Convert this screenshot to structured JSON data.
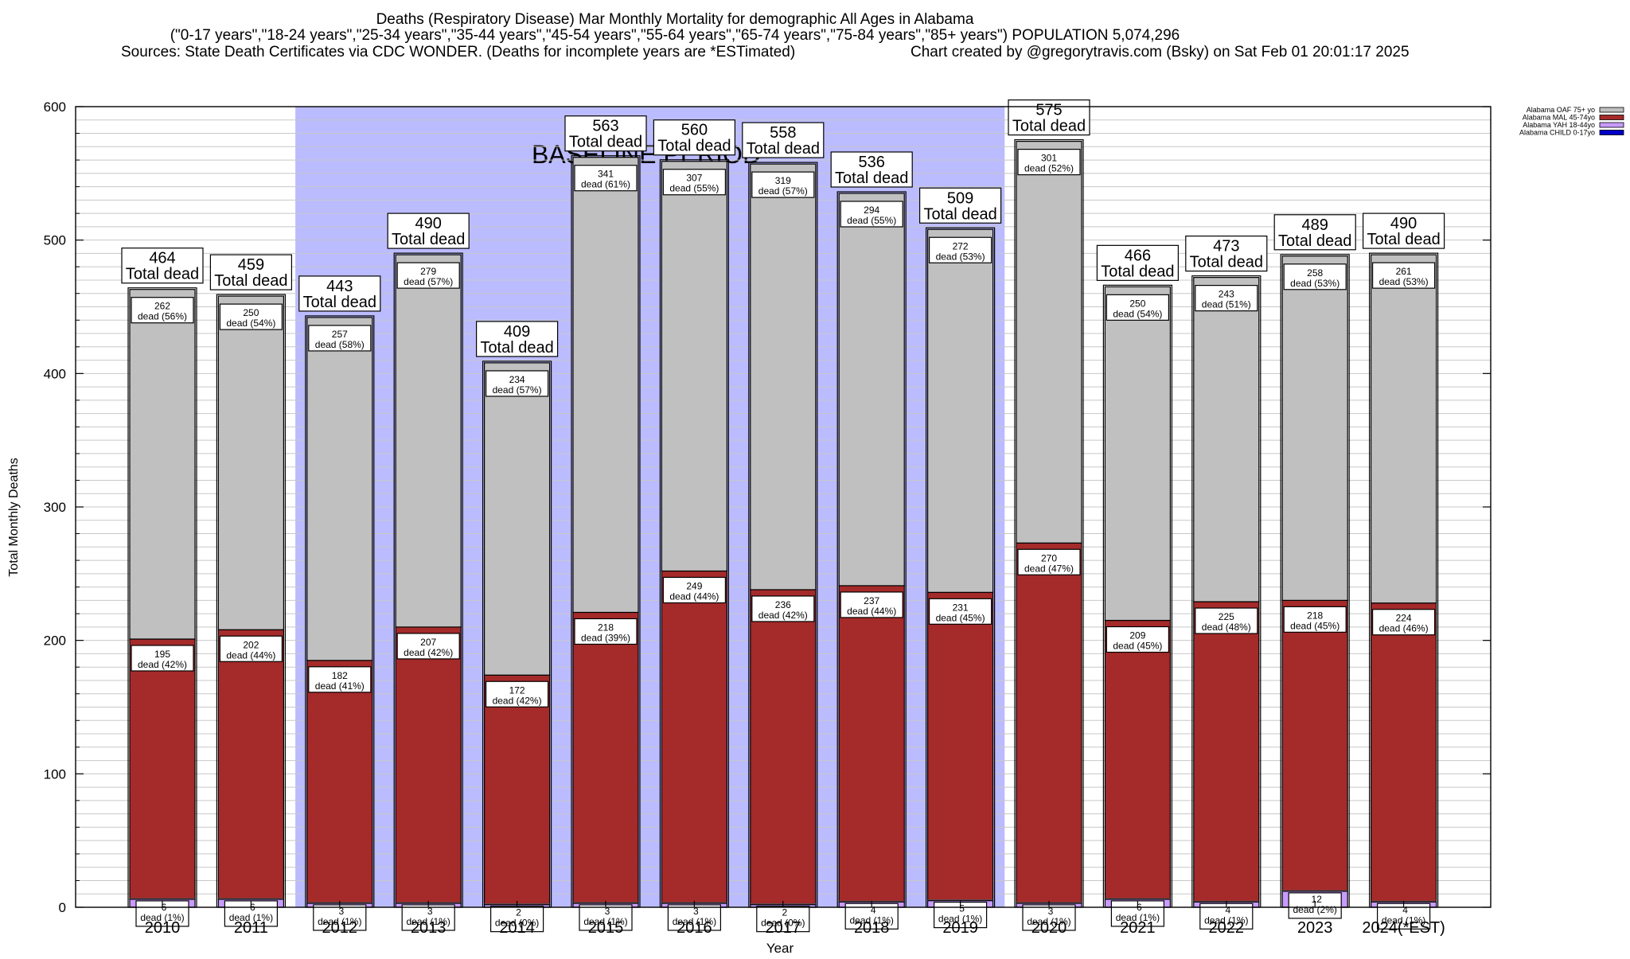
{
  "chart_data": {
    "type": "bar",
    "stacked": true,
    "title_lines": [
      "Deaths (Respiratory Disease) Mar Monthly Mortality for demographic All Ages in Alabama",
      "(\"0-17 years\",\"18-24 years\",\"25-34 years\",\"35-44 years\",\"45-54 years\",\"55-64 years\",\"65-74 years\",\"75-84 years\",\"85+ years\") POPULATION 5,074,296"
    ],
    "sources_text": "Sources: State Death Certificates via CDC WONDER. (Deaths for incomplete years are *ESTimated)",
    "credit_text": "Chart created by @gregorytravis.com (Bsky) on Sat Feb 01 20:01:17 2025",
    "xlabel": "Year",
    "ylabel": "Total Monthly Deaths",
    "ylim": [
      0,
      600
    ],
    "yticks": [
      "0",
      "100",
      "200",
      "300",
      "400",
      "500",
      "600"
    ],
    "grid": true,
    "legend_position": "top-right",
    "baseline_label": "BASELINE PERIOD",
    "baseline_categories": [
      "2012",
      "2019"
    ],
    "total_suffix": "Total dead",
    "dead_word": "dead",
    "categories": [
      "2010",
      "2011",
      "2012",
      "2013",
      "2014",
      "2015",
      "2016",
      "2017",
      "2018",
      "2019",
      "2020",
      "2021",
      "2022",
      "2023",
      "2024(*EST)"
    ],
    "series": [
      {
        "name": "Alabama CHILD 0-17yo",
        "color": "#0000c8",
        "values": [
          0,
          0,
          0,
          0,
          0,
          0,
          0,
          0,
          0,
          0,
          0,
          0,
          0,
          0,
          0
        ]
      },
      {
        "name": "Alabama YAH 18-44yo",
        "color": "#c89bff",
        "values": [
          6,
          6,
          3,
          3,
          2,
          3,
          3,
          2,
          4,
          5,
          3,
          6,
          4,
          12,
          4
        ],
        "percents": [
          "(1%)",
          "(1%)",
          "(1%)",
          "(1%)",
          "(0%)",
          "(1%)",
          "(1%)",
          "(0%)",
          "(1%)",
          "(1%)",
          "(1%)",
          "(1%)",
          "(1%)",
          "(2%)",
          "(1%)"
        ]
      },
      {
        "name": "Alabama MAL 45-74yo",
        "color": "#a52a2a",
        "values": [
          195,
          202,
          182,
          207,
          172,
          218,
          249,
          236,
          237,
          231,
          270,
          209,
          225,
          218,
          224
        ],
        "percents": [
          "(42%)",
          "(44%)",
          "(41%)",
          "(42%)",
          "(42%)",
          "(39%)",
          "(44%)",
          "(42%)",
          "(44%)",
          "(45%)",
          "(47%)",
          "(45%)",
          "(48%)",
          "(45%)",
          "(46%)"
        ]
      },
      {
        "name": "Alabama OAF 75+ yo",
        "color": "#c0c0c0",
        "values": [
          262,
          250,
          257,
          279,
          234,
          341,
          307,
          319,
          294,
          272,
          301,
          250,
          243,
          258,
          261
        ],
        "percents": [
          "(56%)",
          "(54%)",
          "(58%)",
          "(57%)",
          "(57%)",
          "(61%)",
          "(55%)",
          "(57%)",
          "(55%)",
          "(53%)",
          "(52%)",
          "(54%)",
          "(51%)",
          "(53%)",
          "(53%)"
        ]
      }
    ],
    "totals": [
      "464",
      "459",
      "443",
      "490",
      "409",
      "563",
      "560",
      "558",
      "536",
      "509",
      "575",
      "466",
      "473",
      "489",
      "490"
    ],
    "legend_order": [
      "Alabama OAF 75+ yo",
      "Alabama MAL 45-74yo",
      "Alabama YAH 18-44yo",
      "Alabama CHILD 0-17yo"
    ]
  }
}
